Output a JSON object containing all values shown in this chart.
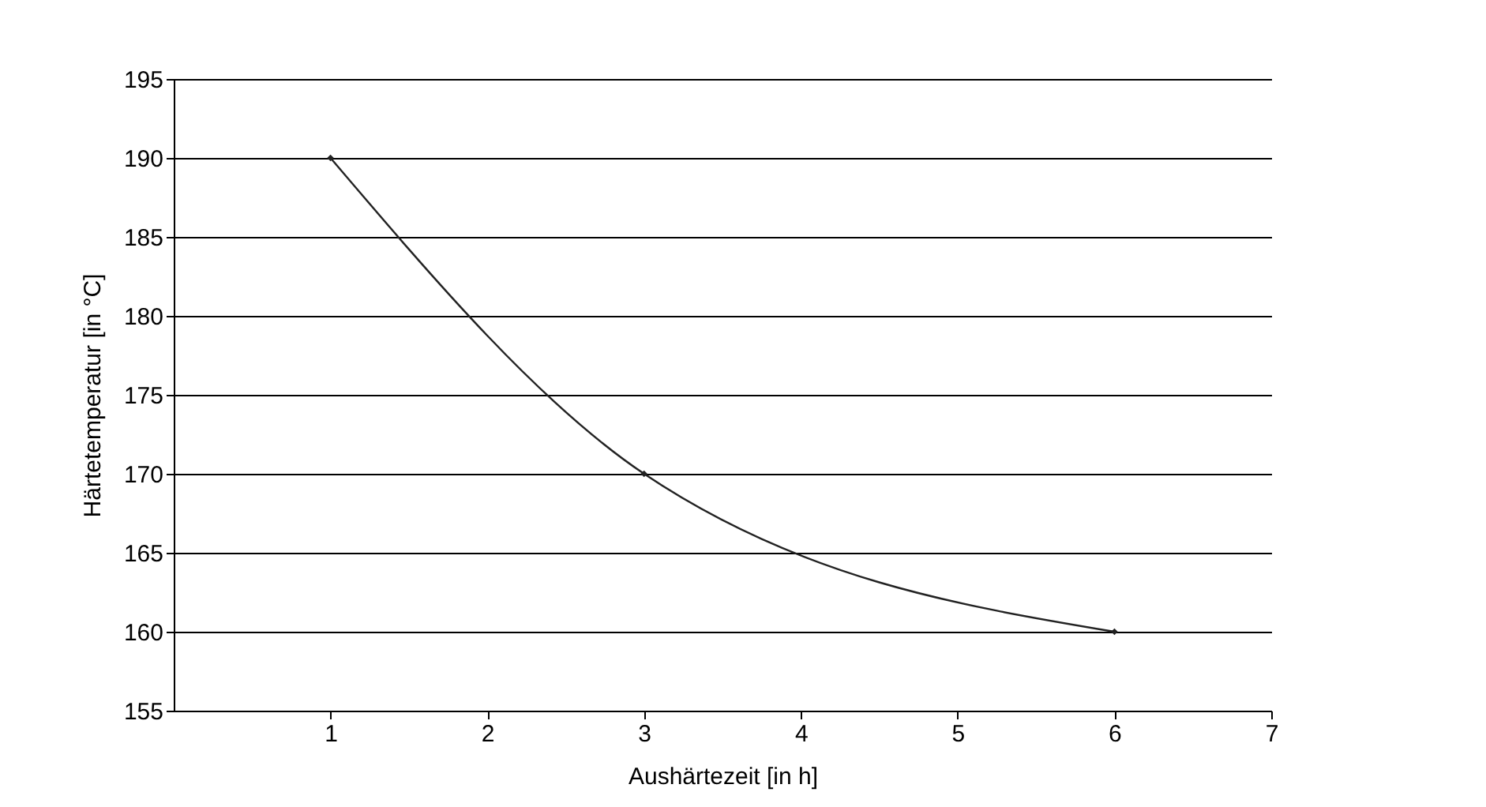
{
  "chart_data": {
    "type": "line",
    "xlabel": "Aushärtezeit [in h]",
    "ylabel": "Härtetemperatur [in °C]",
    "x": [
      1,
      3,
      6
    ],
    "series": [
      {
        "color": "#222222",
        "values": [
          190,
          170,
          160
        ]
      }
    ],
    "xlim": [
      0,
      7
    ],
    "xticks": [
      1,
      2,
      3,
      4,
      5,
      6,
      7
    ],
    "ylim": [
      155,
      195
    ],
    "yticks": [
      155,
      160,
      165,
      170,
      175,
      180,
      185,
      190,
      195
    ],
    "grid": "y",
    "marker": "diamond",
    "line_style": "solid"
  }
}
